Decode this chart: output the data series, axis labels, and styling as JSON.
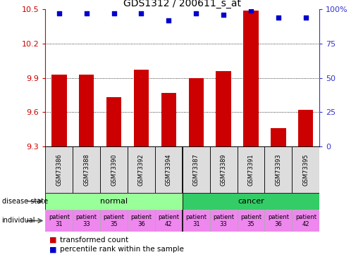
{
  "title": "GDS1312 / 200611_s_at",
  "samples": [
    "GSM73386",
    "GSM73388",
    "GSM73390",
    "GSM73392",
    "GSM73394",
    "GSM73387",
    "GSM73389",
    "GSM73391",
    "GSM73393",
    "GSM73395"
  ],
  "transformed_counts": [
    9.93,
    9.93,
    9.73,
    9.97,
    9.77,
    9.9,
    9.96,
    10.49,
    9.46,
    9.62
  ],
  "percentile_ranks": [
    97,
    97,
    97,
    97,
    92,
    97,
    96,
    99,
    94,
    94
  ],
  "ylim_left": [
    9.3,
    10.5
  ],
  "ylim_right": [
    0,
    100
  ],
  "yticks_left": [
    9.3,
    9.6,
    9.9,
    10.2,
    10.5
  ],
  "yticks_right": [
    0,
    25,
    50,
    75,
    100
  ],
  "bar_color": "#cc0000",
  "dot_color": "#0000cc",
  "normal_color": "#99ff99",
  "cancer_color": "#33cc66",
  "individual_color": "#ee88ee",
  "individual_labels": [
    "patient\n31",
    "patient\n33",
    "patient\n35",
    "patient\n36",
    "patient\n42",
    "patient\n31",
    "patient\n33",
    "patient\n35",
    "patient\n36",
    "patient\n42"
  ],
  "tick_label_color_left": "#cc0000",
  "tick_label_color_right": "#3333cc",
  "sample_box_color": "#dddddd"
}
